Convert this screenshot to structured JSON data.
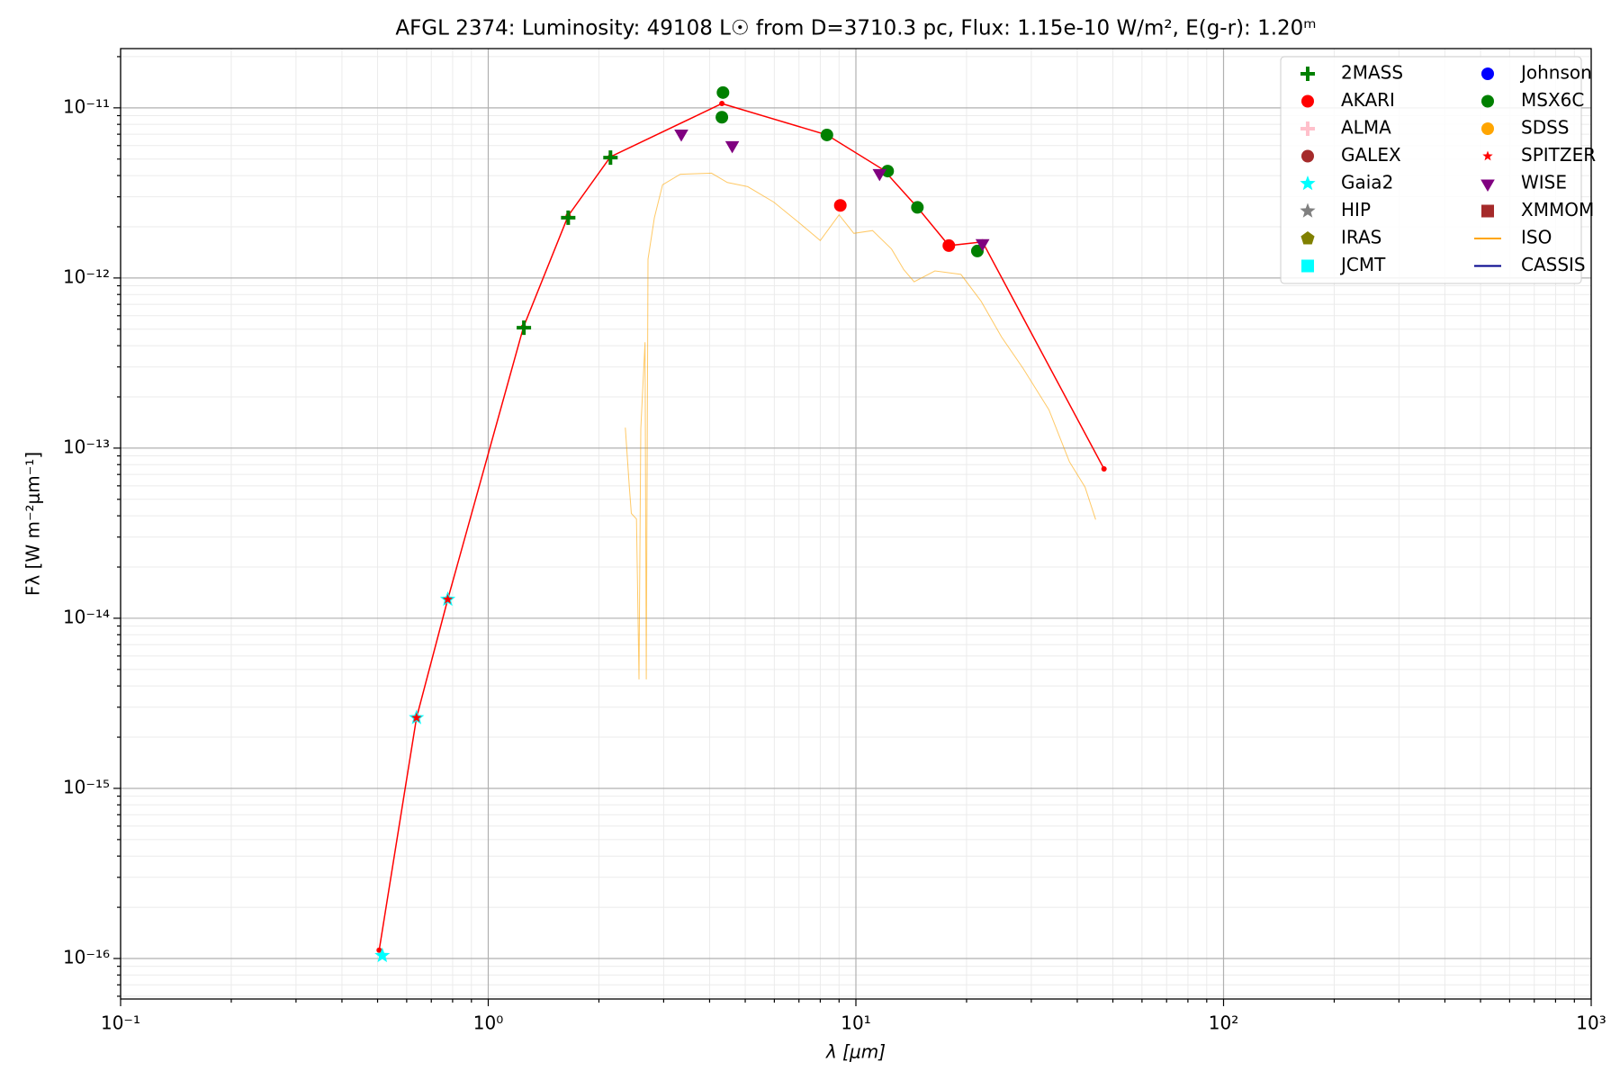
{
  "chart_data": {
    "type": "scatter",
    "title": "AFGL 2374:  Luminosity: 49108 L☉ from D=3710.3 pc, Flux: 1.15e-10 W/m², E(g-r): 1.20ᵐ",
    "xlabel": "λ [μm]",
    "ylabel": "Fλ [W m⁻²μm⁻¹]",
    "xscale": "log",
    "yscale": "log",
    "grid": true,
    "legend": "upper right",
    "xlim": [
      0.1,
      1000
    ],
    "ylim": [
      5.78e-17,
      2.23e-11
    ],
    "xticks": [
      {
        "value": 0.1,
        "label": "10⁻¹"
      },
      {
        "value": 1,
        "label": "10⁰"
      },
      {
        "value": 10,
        "label": "10¹"
      },
      {
        "value": 100,
        "label": "10²"
      },
      {
        "value": 1000,
        "label": "10³"
      }
    ],
    "yticks": [
      {
        "value": 1e-16,
        "label": "10⁻¹⁶"
      },
      {
        "value": 1e-15,
        "label": "10⁻¹⁵"
      },
      {
        "value": 1e-14,
        "label": "10⁻¹⁴"
      },
      {
        "value": 1e-13,
        "label": "10⁻¹³"
      },
      {
        "value": 1e-12,
        "label": "10⁻¹²"
      },
      {
        "value": 1e-11,
        "label": "10⁻¹¹"
      }
    ],
    "xminorticks": [
      0.2,
      0.3,
      0.4,
      0.5,
      0.6,
      0.7,
      0.8,
      0.9,
      2,
      3,
      4,
      5,
      6,
      7,
      8,
      9,
      20,
      30,
      40,
      50,
      60,
      70,
      80,
      90,
      200,
      300,
      400,
      500,
      600,
      700,
      800,
      900
    ],
    "yminorticks": [
      6e-17,
      7e-17,
      8e-17,
      9e-17,
      2e-16,
      3e-16,
      4e-16,
      5e-16,
      6e-16,
      7e-16,
      8e-16,
      9e-16,
      2e-15,
      3e-15,
      4e-15,
      5e-15,
      6e-15,
      7e-15,
      8e-15,
      9e-15,
      2e-14,
      3e-14,
      4e-14,
      5e-14,
      6e-14,
      7e-14,
      8e-14,
      9e-14,
      2e-13,
      3e-13,
      4e-13,
      5e-13,
      6e-13,
      7e-13,
      8e-13,
      9e-13,
      2e-12,
      3e-12,
      4e-12,
      5e-12,
      6e-12,
      7e-12,
      8e-12,
      9e-12,
      2e-11
    ],
    "model": {
      "color": "#ff0000",
      "x": [
        0.505,
        0.638,
        0.776,
        1.247,
        1.65,
        2.15,
        4.32,
        8.34,
        11.9,
        14.7,
        17.9,
        22.1,
        47.3
      ],
      "values": [
        1.12e-16,
        2.6e-15,
        1.29e-14,
        5.16e-13,
        2.32e-12,
        5.16e-12,
        1.06e-11,
        6.93e-12,
        4.31e-12,
        2.6e-12,
        1.55e-12,
        1.63e-12,
        7.55e-14
      ]
    },
    "series": [
      {
        "name": "2MASS",
        "color": "#008000",
        "marker": "plus",
        "x": [
          1.25,
          1.65,
          2.15
        ],
        "values": [
          5.1e-13,
          2.26e-12,
          5.1e-12
        ]
      },
      {
        "name": "AKARI",
        "color": "#ff0000",
        "marker": "circle",
        "x": [
          9.07,
          17.9
        ],
        "values": [
          2.67e-12,
          1.55e-12
        ]
      },
      {
        "name": "ALMA",
        "color": "#ffc0cb",
        "marker": "plus",
        "x": [],
        "values": []
      },
      {
        "name": "GALEX",
        "color": "#a52a2a",
        "marker": "circle",
        "x": [],
        "values": []
      },
      {
        "name": "Gaia2",
        "color": "#00ffff",
        "marker": "star",
        "x": [
          0.515,
          0.638,
          0.776
        ],
        "values": [
          1.04e-16,
          2.6e-15,
          1.29e-14
        ]
      },
      {
        "name": "HIP",
        "color": "#808080",
        "marker": "star",
        "x": [],
        "values": []
      },
      {
        "name": "IRAS",
        "color": "#808000",
        "marker": "pentagon",
        "x": [],
        "values": []
      },
      {
        "name": "JCMT",
        "color": "#00ffff",
        "marker": "square",
        "x": [],
        "values": []
      },
      {
        "name": "Johnson",
        "color": "#0000ff",
        "marker": "circle",
        "x": [],
        "values": []
      },
      {
        "name": "MSX6C",
        "color": "#008000",
        "marker": "circle",
        "x": [
          4.35,
          4.32,
          8.34,
          12.2,
          14.7,
          21.4
        ],
        "values": [
          1.23e-11,
          8.81e-12,
          6.93e-12,
          4.25e-12,
          2.6e-12,
          1.44e-12
        ]
      },
      {
        "name": "SDSS",
        "color": "#ffa500",
        "marker": "circle",
        "x": [],
        "values": []
      },
      {
        "name": "SPITZER",
        "color": "#ff0000",
        "marker": "smallstar",
        "x": [
          0.638,
          0.776
        ],
        "values": [
          2.6e-15,
          1.29e-14
        ]
      },
      {
        "name": "WISE",
        "color": "#800080",
        "marker": "tridown",
        "x": [
          3.35,
          4.61,
          11.6,
          22.1
        ],
        "values": [
          7.05e-12,
          6.03e-12,
          4.13e-12,
          1.6e-12
        ]
      },
      {
        "name": "XMMOM",
        "color": "#a52a2a",
        "marker": "square",
        "x": [],
        "values": []
      },
      {
        "name": "ISO",
        "color": "#ffa500",
        "marker": "line",
        "x": [
          2.36,
          2.42,
          2.45,
          2.53,
          2.57,
          2.6,
          2.67,
          2.69,
          2.72,
          2.83,
          2.98,
          3.33,
          4.05,
          4.47,
          5.08,
          5.98,
          7.03,
          8.0,
          9.0,
          9.87,
          11.1,
          12.5,
          13.5,
          14.4,
          16.4,
          19.3,
          21.9,
          24.9,
          28.5,
          33.5,
          38.1,
          42.0,
          44.9
        ],
        "values": [
          1.32e-13,
          5.86e-14,
          4.13e-14,
          3.83e-14,
          4.37e-15,
          1.3e-13,
          4.19e-13,
          4.37e-15,
          1.29e-12,
          2.26e-12,
          3.53e-12,
          4.07e-12,
          4.13e-12,
          3.64e-12,
          3.44e-12,
          2.79e-12,
          2.1e-12,
          1.66e-12,
          2.35e-12,
          1.83e-12,
          1.9e-12,
          1.48e-12,
          1.12e-12,
          9.5e-13,
          1.1e-12,
          1.05e-12,
          7.3e-13,
          4.5e-13,
          2.94e-13,
          1.68e-13,
          8.3e-14,
          5.9e-14,
          3.8e-14
        ]
      },
      {
        "name": "CASSIS",
        "color": "#00008b",
        "marker": "line",
        "x": [],
        "values": []
      }
    ]
  }
}
